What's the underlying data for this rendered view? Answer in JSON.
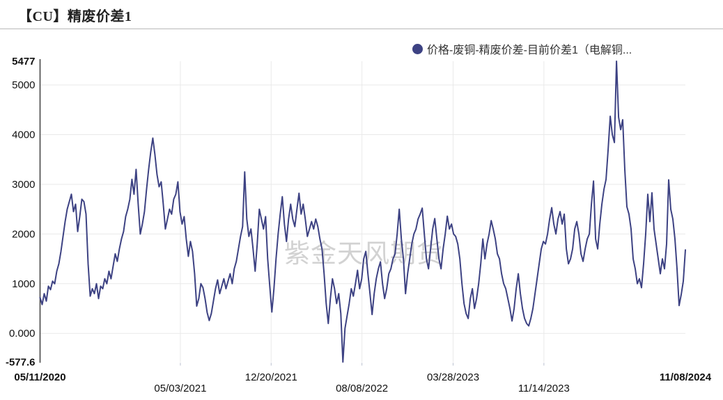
{
  "header": {
    "title": "【CU】精废价差1"
  },
  "legend": {
    "label": "价格-废铜-精废价差-目前价差1（电解铜...",
    "color": "#3d4283"
  },
  "watermark": {
    "text": "紫金天风期货"
  },
  "chart_data": {
    "type": "line",
    "title": "【CU】精废价差1",
    "series_name": "价格-废铜-精废价差-目前价差1（电解铜...",
    "line_color": "#3d4283",
    "grid": true,
    "legend_position": "top-right",
    "y_axis": {
      "min": -577.6,
      "max": 5477,
      "ticks": [
        {
          "value": 5477,
          "label": "5477",
          "bold": true,
          "gridline": false
        },
        {
          "value": 5000,
          "label": "5000",
          "bold": false,
          "gridline": true
        },
        {
          "value": 4000,
          "label": "4000",
          "bold": false,
          "gridline": true
        },
        {
          "value": 3000,
          "label": "3000",
          "bold": false,
          "gridline": true
        },
        {
          "value": 2000,
          "label": "2000",
          "bold": false,
          "gridline": true
        },
        {
          "value": 1000,
          "label": "1000",
          "bold": false,
          "gridline": true
        },
        {
          "value": 0,
          "label": "0.000",
          "bold": false,
          "gridline": true
        },
        {
          "value": -577.6,
          "label": "-577.6",
          "bold": true,
          "gridline": false
        }
      ]
    },
    "x_axis": {
      "start": "05/11/2020",
      "end": "11/08/2024",
      "ticks": [
        {
          "label": "05/11/2020",
          "date": "2020-05-11",
          "row": 1,
          "bold": true
        },
        {
          "label": "05/03/2021",
          "date": "2021-05-03",
          "row": 2,
          "bold": false
        },
        {
          "label": "12/20/2021",
          "date": "2021-12-20",
          "row": 1,
          "bold": false
        },
        {
          "label": "08/08/2022",
          "date": "2022-08-08",
          "row": 2,
          "bold": false
        },
        {
          "label": "03/28/2023",
          "date": "2023-03-28",
          "row": 1,
          "bold": false
        },
        {
          "label": "11/14/2023",
          "date": "2023-11-14",
          "row": 2,
          "bold": false
        },
        {
          "label": "11/08/2024",
          "date": "2024-11-08",
          "row": 1,
          "bold": true
        }
      ]
    },
    "values": [
      720,
      580,
      800,
      650,
      950,
      880,
      1050,
      1000,
      1250,
      1400,
      1650,
      1950,
      2250,
      2500,
      2650,
      2800,
      2450,
      2600,
      2050,
      2350,
      2700,
      2650,
      2400,
      1400,
      750,
      900,
      800,
      1000,
      700,
      950,
      900,
      1100,
      1000,
      1250,
      1100,
      1350,
      1600,
      1450,
      1700,
      1900,
      2050,
      2350,
      2500,
      2700,
      3100,
      2800,
      3300,
      2600,
      2000,
      2200,
      2450,
      2900,
      3300,
      3650,
      3930,
      3600,
      3200,
      2950,
      3050,
      2600,
      2100,
      2300,
      2500,
      2400,
      2700,
      2800,
      3050,
      2450,
      2200,
      2350,
      1900,
      1550,
      1850,
      1650,
      1200,
      550,
      700,
      1000,
      920,
      700,
      420,
      260,
      400,
      650,
      900,
      1075,
      800,
      950,
      1100,
      900,
      1050,
      1200,
      1000,
      1300,
      1450,
      1700,
      1950,
      2150,
      3250,
      2300,
      1950,
      2100,
      1700,
      1250,
      1800,
      2500,
      2300,
      2100,
      2350,
      1500,
      950,
      430,
      900,
      1500,
      2000,
      2400,
      2750,
      2200,
      1850,
      2300,
      2600,
      2300,
      2150,
      2500,
      2820,
      2400,
      2600,
      2300,
      1950,
      2100,
      2250,
      2100,
      2300,
      2150,
      1900,
      1700,
      1200,
      600,
      200,
      700,
      1100,
      900,
      600,
      800,
      400,
      -577.6,
      100,
      350,
      600,
      900,
      750,
      1000,
      1270,
      900,
      1100,
      1500,
      1650,
      1200,
      800,
      380,
      800,
      1100,
      1300,
      1440,
      1000,
      700,
      900,
      1200,
      1300,
      1500,
      1600,
      2000,
      2500,
      1900,
      1500,
      800,
      1200,
      1500,
      1800,
      2000,
      2100,
      2300,
      2400,
      2520,
      2000,
      1500,
      1300,
      1700,
      2100,
      2310,
      1900,
      1500,
      1300,
      1700,
      2000,
      2360,
      2100,
      2200,
      2000,
      1950,
      1800,
      1500,
      1000,
      600,
      400,
      300,
      700,
      900,
      500,
      700,
      1000,
      1400,
      1900,
      1500,
      1800,
      2000,
      2270,
      2100,
      1900,
      1600,
      1500,
      1200,
      1000,
      900,
      700,
      500,
      250,
      500,
      900,
      1200,
      800,
      500,
      300,
      200,
      150,
      300,
      500,
      800,
      1100,
      1400,
      1700,
      1850,
      1800,
      2000,
      2300,
      2530,
      2200,
      2000,
      2300,
      2450,
      2200,
      2400,
      1700,
      1400,
      1500,
      1700,
      2100,
      2250,
      2000,
      1600,
      1450,
      1700,
      1900,
      2000,
      2600,
      3065,
      1900,
      1700,
      2200,
      2600,
      2900,
      3100,
      3700,
      4370,
      4000,
      3840,
      5477,
      4350,
      4100,
      4300,
      3300,
      2550,
      2400,
      2100,
      1500,
      1300,
      1000,
      1100,
      920,
      1400,
      2000,
      2800,
      2250,
      2830,
      2100,
      1800,
      1500,
      1200,
      1500,
      1300,
      1800,
      3090,
      2500,
      2300,
      1900,
      1300,
      560,
      780,
      1050,
      1680
    ]
  }
}
